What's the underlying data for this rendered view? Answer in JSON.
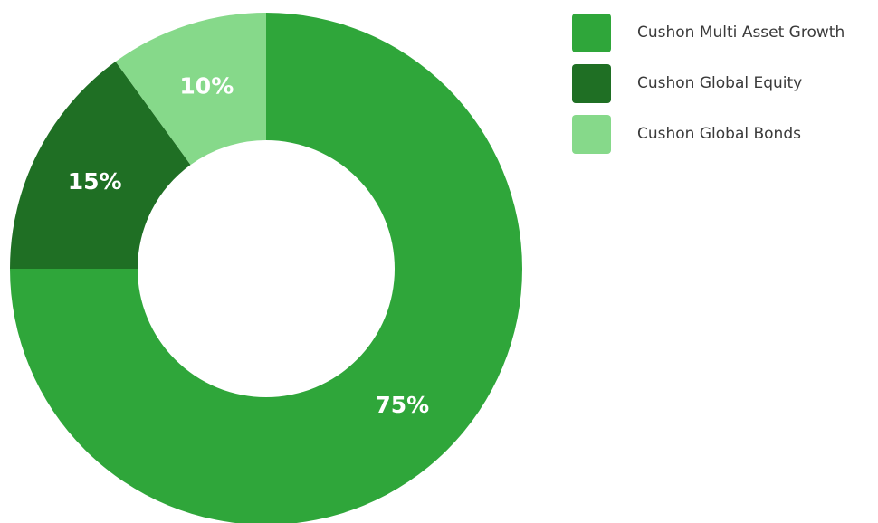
{
  "chart_data": {
    "type": "pie",
    "donut": true,
    "title": "",
    "legend_position": "right",
    "slices": [
      {
        "label": "Cushon Multi Asset Growth",
        "value": 75,
        "value_label": "75%",
        "color": "#2fa63a"
      },
      {
        "label": "Cushon Global Equity",
        "value": 15,
        "value_label": "15%",
        "color": "#1f6f24"
      },
      {
        "label": "Cushon Global Bonds",
        "value": 10,
        "value_label": "10%",
        "color": "#86d98a"
      }
    ]
  }
}
